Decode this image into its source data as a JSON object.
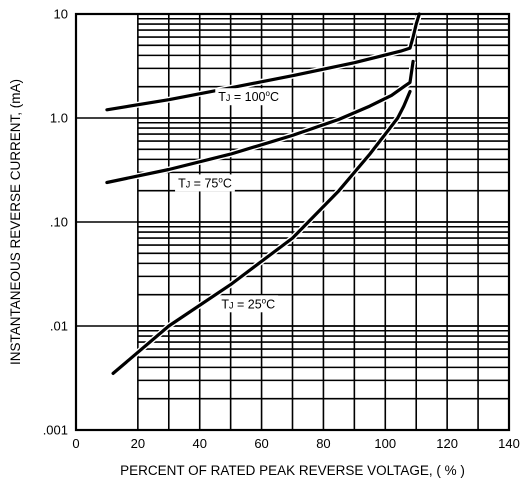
{
  "chart_data": {
    "type": "line",
    "xlabel": "PERCENT OF RATED PEAK REVERSE VOLTAGE, ( % )",
    "ylabel": "INSTANTANEOUS REVERSE CURRENT, (mA)",
    "xlim": [
      0,
      140
    ],
    "ylim": [
      0.001,
      10
    ],
    "y_scale": "log",
    "grid": true,
    "x_ticks": [
      "0",
      "20",
      "40",
      "60",
      "80",
      "100",
      "120",
      "140"
    ],
    "y_ticks": [
      {
        "value": 10,
        "label": "10"
      },
      {
        "value": 1,
        "label": "1.0"
      },
      {
        "value": 0.1,
        "label": ".10"
      },
      {
        "value": 0.01,
        "label": ".01"
      },
      {
        "value": 0.001,
        "label": ".001"
      }
    ],
    "series": [
      {
        "name": "TJ = 100°C",
        "label_parts": {
          "t": "T",
          "sub": "J",
          "eq": " = 100",
          "deg": "o",
          "unit": "C"
        },
        "label_at": {
          "x": 46,
          "y": 1.45
        },
        "x": [
          10,
          30,
          50,
          70,
          90,
          105,
          108,
          109,
          110,
          111
        ],
        "y": [
          1.2,
          1.5,
          1.95,
          2.55,
          3.4,
          4.4,
          4.7,
          6.0,
          8.0,
          10.0
        ]
      },
      {
        "name": "TJ = 75°C",
        "label_parts": {
          "t": "T",
          "sub": "J",
          "eq": " = 75",
          "deg": "o",
          "unit": "C"
        },
        "label_at": {
          "x": 33,
          "y": 0.215
        },
        "x": [
          10,
          30,
          50,
          70,
          85,
          95,
          102,
          106,
          108,
          109
        ],
        "y": [
          0.24,
          0.32,
          0.45,
          0.68,
          0.97,
          1.3,
          1.65,
          2.0,
          2.2,
          3.5
        ]
      },
      {
        "name": "TJ = 25°C",
        "label_parts": {
          "t": "T",
          "sub": "J",
          "eq": " = 25",
          "deg": "o",
          "unit": "C"
        },
        "label_at": {
          "x": 47,
          "y": 0.0148
        },
        "x": [
          12,
          30,
          50,
          70,
          85,
          95,
          100,
          104,
          106,
          108
        ],
        "y": [
          0.0035,
          0.01,
          0.025,
          0.07,
          0.2,
          0.45,
          0.7,
          1.0,
          1.3,
          1.8
        ]
      }
    ]
  }
}
